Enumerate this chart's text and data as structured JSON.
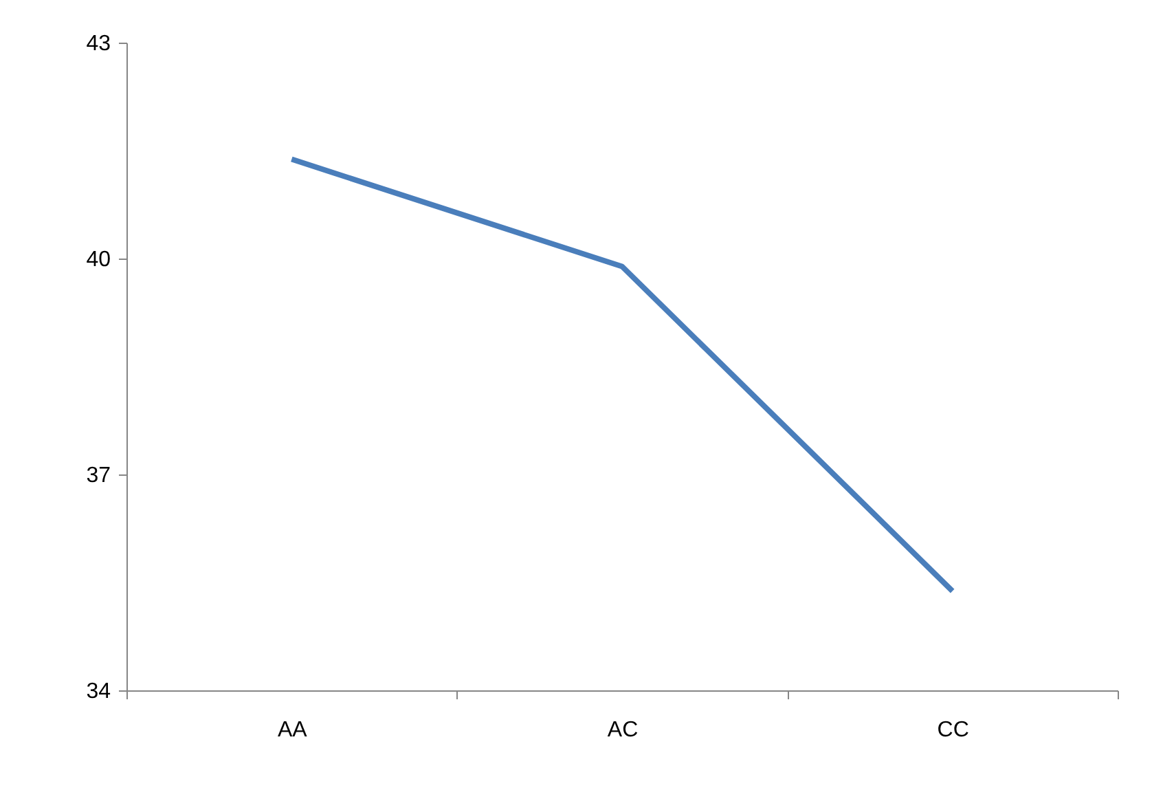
{
  "chart_data": {
    "type": "line",
    "categories": [
      "AA",
      "AC",
      "CC"
    ],
    "series": [
      {
        "color": "#4a7ebb",
        "values": [
          41.38,
          39.89,
          35.38
        ]
      }
    ],
    "ylim": [
      34,
      43
    ],
    "yticks": [
      34,
      37,
      40,
      43
    ],
    "grid": false,
    "legend": false,
    "marker": "none",
    "line_style": "solid"
  }
}
